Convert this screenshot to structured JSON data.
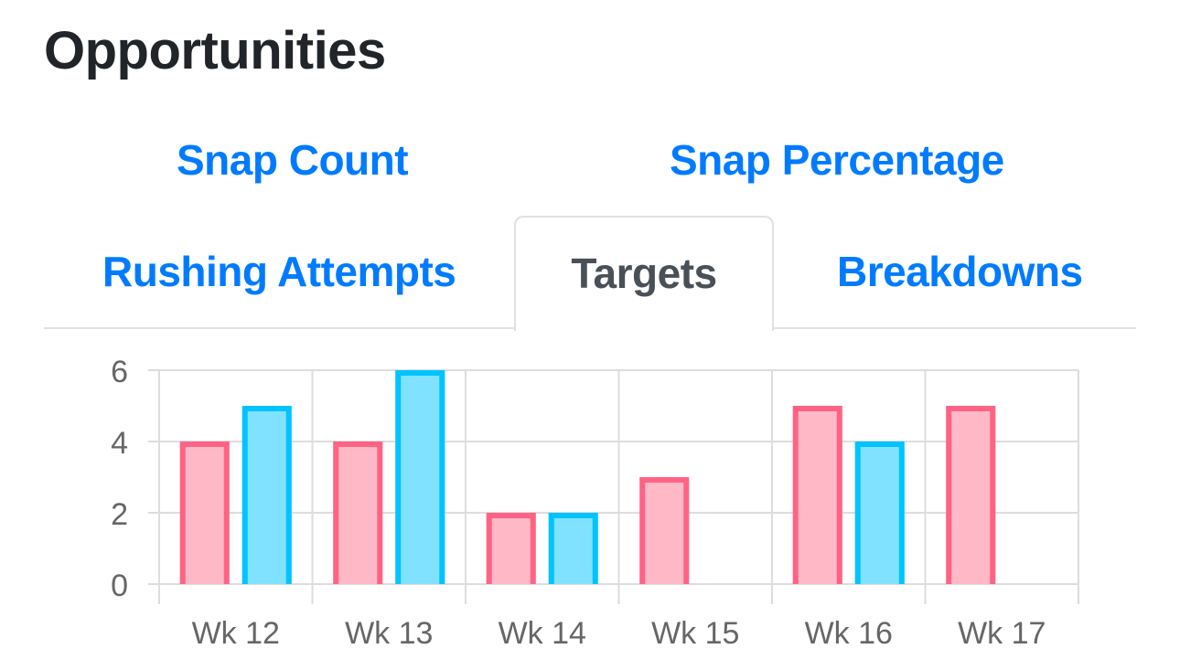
{
  "header": {
    "title": "Opportunities"
  },
  "tabs": [
    {
      "id": "snap-count",
      "label": "Snap Count",
      "active": false
    },
    {
      "id": "snap-percentage",
      "label": "Snap Percentage",
      "active": false
    },
    {
      "id": "rushing-attempts",
      "label": "Rushing Attempts",
      "active": false
    },
    {
      "id": "targets",
      "label": "Targets",
      "active": true
    },
    {
      "id": "breakdowns",
      "label": "Breakdowns",
      "active": false
    }
  ],
  "colors": {
    "link": "#007bff",
    "active_tab_text": "#495057",
    "series_a_border": "#ff6384",
    "series_a_fill": "#ffb8c6",
    "series_b_border": "#00c3ff",
    "series_b_fill": "#80e2ff",
    "grid": "#dddddd",
    "tick_text": "#666666"
  },
  "chart_data": {
    "type": "bar",
    "categories": [
      "Wk 12",
      "Wk 13",
      "Wk 14",
      "Wk 15",
      "Wk 16",
      "Wk 17"
    ],
    "series": [
      {
        "values": [
          4,
          4,
          2,
          3,
          5,
          5
        ]
      },
      {
        "values": [
          5,
          6,
          2,
          0,
          4,
          0
        ]
      }
    ],
    "ylim": [
      0,
      6
    ],
    "yticks": [
      0,
      2,
      4,
      6
    ],
    "grid": true,
    "legend": false
  }
}
